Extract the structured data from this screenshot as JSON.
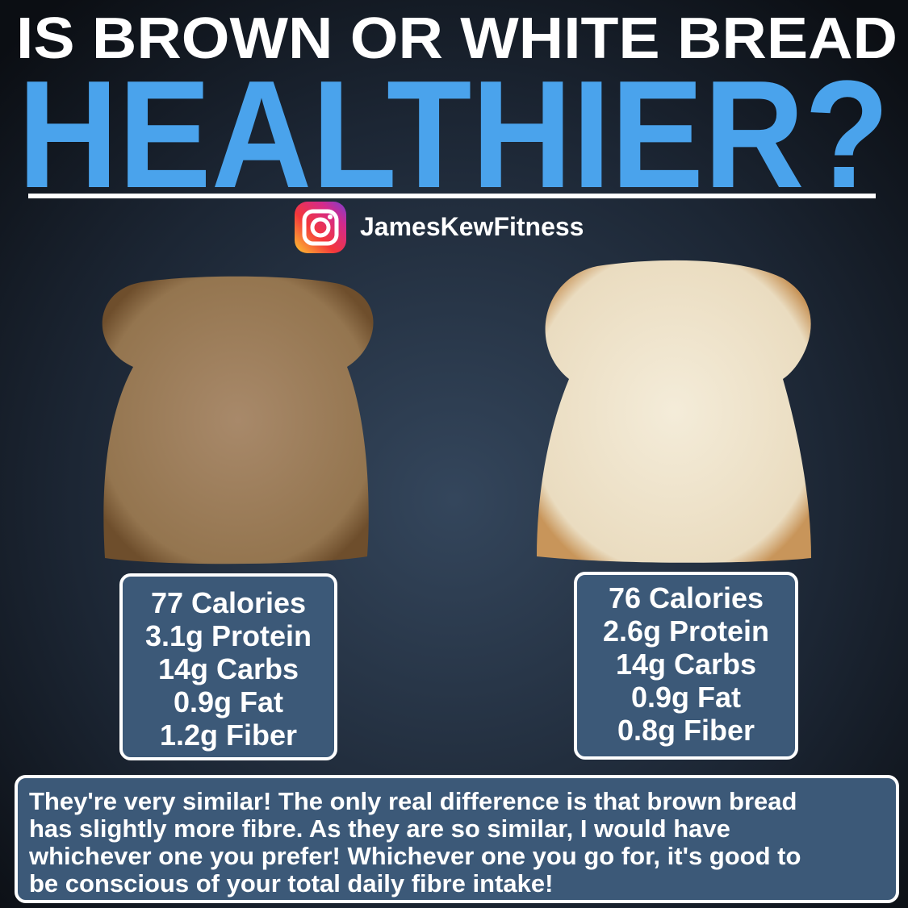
{
  "title": {
    "line1": "IS BROWN OR WHITE BREAD",
    "line2": "HEALTHIER?"
  },
  "handle": "JamesKewFitness",
  "panels": [
    {
      "lines": [
        "77 Calories",
        "3.1g Protein",
        "14g Carbs",
        "0.9g Fat",
        "1.2g Fiber"
      ]
    },
    {
      "lines": [
        "76 Calories",
        "2.6g Protein",
        "14g Carbs",
        "0.9g Fat",
        "0.8g Fiber"
      ]
    }
  ],
  "summary": {
    "lines": [
      "They're very similar! The only real difference is that brown bread",
      "has slightly more fibre. As they are so similar, I would have",
      "whichever one you prefer! Whichever one you go for, it's good to",
      "be conscious of your total daily fibre intake!"
    ]
  }
}
